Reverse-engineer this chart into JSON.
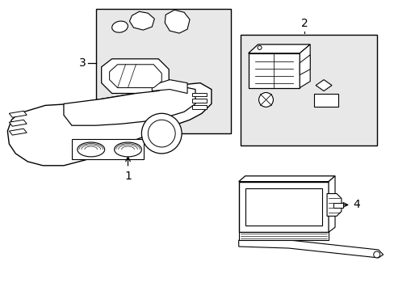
{
  "background_color": "#ffffff",
  "fill_color": "#e8e8e8",
  "line_color": "#000000",
  "label_1": "1",
  "label_2": "2",
  "label_3": "3",
  "label_4": "4",
  "label_fontsize": 10,
  "fig_width": 4.89,
  "fig_height": 3.6,
  "dpi": 100
}
